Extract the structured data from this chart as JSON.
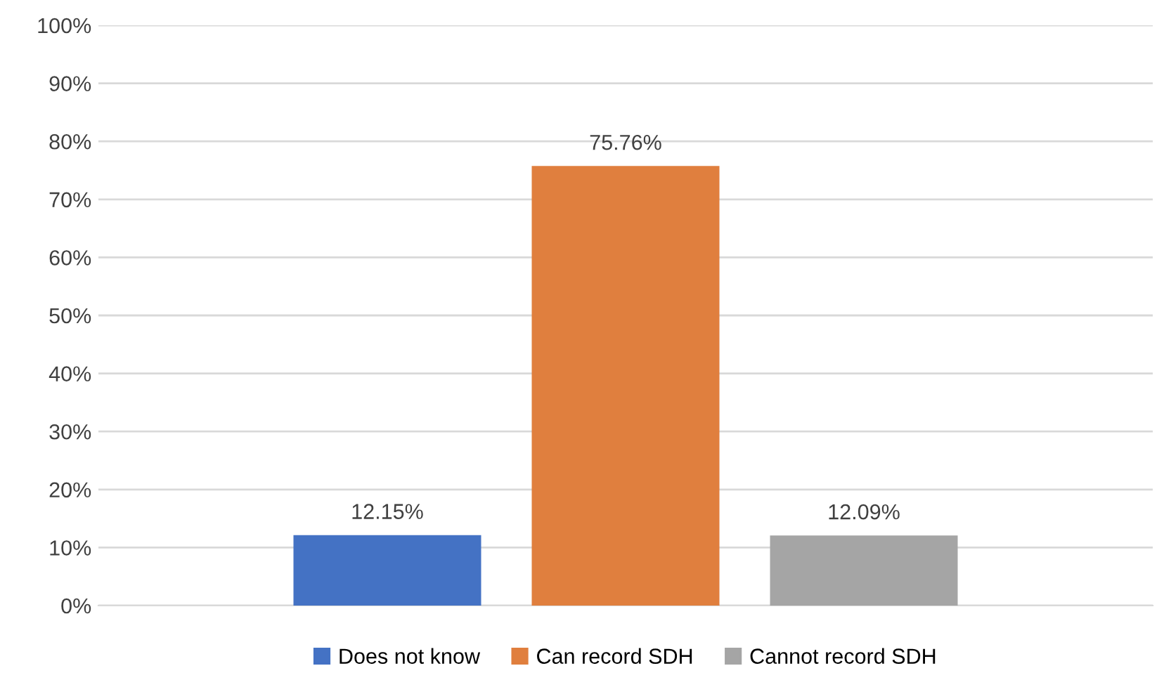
{
  "chart_data": {
    "type": "bar",
    "categories": [
      null
    ],
    "series": [
      {
        "name": "Does not know",
        "color": "#4472c4",
        "values": [
          12.15
        ],
        "value_labels": [
          "12.15%"
        ]
      },
      {
        "name": "Can record SDH",
        "color": "#e07f3e",
        "values": [
          75.76
        ],
        "value_labels": [
          "75.76%"
        ]
      },
      {
        "name": "Cannot record SDH",
        "color": "#a5a5a5",
        "values": [
          12.09
        ],
        "value_labels": [
          "12.09%"
        ]
      }
    ],
    "ylim": [
      0,
      100
    ],
    "yticks": [
      {
        "value": 0,
        "label": "0%"
      },
      {
        "value": 10,
        "label": "10%"
      },
      {
        "value": 20,
        "label": "20%"
      },
      {
        "value": 30,
        "label": "30%"
      },
      {
        "value": 40,
        "label": "40%"
      },
      {
        "value": 50,
        "label": "50%"
      },
      {
        "value": 60,
        "label": "60%"
      },
      {
        "value": 70,
        "label": "70%"
      },
      {
        "value": 80,
        "label": "80%"
      },
      {
        "value": 90,
        "label": "90%"
      },
      {
        "value": 100,
        "label": "100%"
      }
    ],
    "grid": "y",
    "legend": "bottom"
  }
}
